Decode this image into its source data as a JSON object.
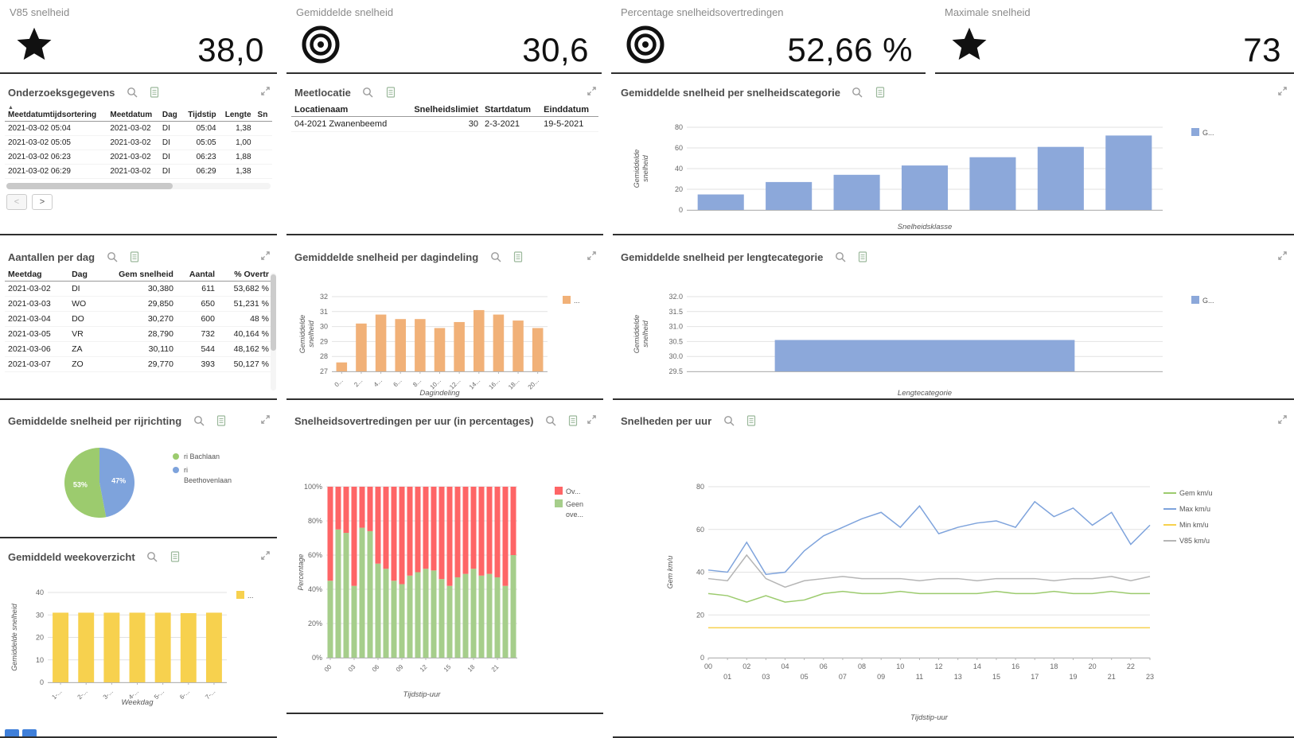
{
  "kpis": [
    {
      "title": "V85 snelheid",
      "value": "38,0",
      "icon": "star"
    },
    {
      "title": "Gemiddelde snelheid",
      "value": "30,6",
      "icon": "bullseye"
    },
    {
      "title": "Percentage snelheidsovertredingen",
      "value": "52,66 %",
      "icon": "bullseye"
    },
    {
      "title": "Maximale snelheid",
      "value": "73",
      "icon": "star"
    }
  ],
  "panels": {
    "onderzoeksgegevens": {
      "title": "Onderzoeksgegevens",
      "table": {
        "headers": [
          "Meetdatumtijdsortering",
          "Meetdatum",
          "Dag",
          "Tijdstip",
          "Lengte",
          "Sn"
        ],
        "aligns": [
          "left",
          "left",
          "left",
          "right",
          "right",
          "left"
        ],
        "sort_col": 0,
        "rows": [
          [
            "2021-03-02 05:04",
            "2021-03-02",
            "DI",
            "05:04",
            "1,38",
            ""
          ],
          [
            "2021-03-02 05:05",
            "2021-03-02",
            "DI",
            "05:05",
            "1,00",
            ""
          ],
          [
            "2021-03-02 06:23",
            "2021-03-02",
            "DI",
            "06:23",
            "1,88",
            ""
          ],
          [
            "2021-03-02 06:29",
            "2021-03-02",
            "DI",
            "06:29",
            "1,38",
            ""
          ]
        ]
      },
      "pager": {
        "prev": "<",
        "next": ">"
      }
    },
    "meetlocatie": {
      "title": "Meetlocatie",
      "table": {
        "headers": [
          "Locatienaam",
          "Snelheidslimiet",
          "Startdatum",
          "Einddatum"
        ],
        "aligns": [
          "left",
          "right",
          "left",
          "left"
        ],
        "rows": [
          [
            "04-2021 Zwanenbeemd",
            "30",
            "2-3-2021",
            "19-5-2021"
          ]
        ]
      }
    },
    "speed_category": {
      "title": "Gemiddelde snelheid per snelheidscategorie"
    },
    "aantallen": {
      "title": "Aantallen per dag",
      "table": {
        "headers": [
          "Meetdag",
          "Dag",
          "Gem snelheid",
          "Aantal",
          "% Overtr"
        ],
        "aligns": [
          "left",
          "left",
          "right",
          "right",
          "right"
        ],
        "rows": [
          [
            "2021-03-02",
            "DI",
            "30,380",
            "611",
            "53,682 %"
          ],
          [
            "2021-03-03",
            "WO",
            "29,850",
            "650",
            "51,231 %"
          ],
          [
            "2021-03-04",
            "DO",
            "30,270",
            "600",
            "48 %"
          ],
          [
            "2021-03-05",
            "VR",
            "28,790",
            "732",
            "40,164 %"
          ],
          [
            "2021-03-06",
            "ZA",
            "30,110",
            "544",
            "48,162 %"
          ],
          [
            "2021-03-07",
            "ZO",
            "29,770",
            "393",
            "50,127 %"
          ]
        ]
      }
    },
    "dagindeling": {
      "title": "Gemiddelde snelheid per dagindeling"
    },
    "lengtecategorie": {
      "title": "Gemiddelde snelheid per lengtecategorie"
    },
    "rijrichting": {
      "title": "Gemiddelde snelheid per rijrichting"
    },
    "overtredingen": {
      "title": "Snelheidsovertredingen per uur (in percentages)"
    },
    "snelheden": {
      "title": "Snelheden per uur"
    },
    "weekoverzicht": {
      "title": "Gemiddeld weekoverzicht"
    }
  },
  "chart_data": [
    {
      "id": "speed_category",
      "type": "bar",
      "title": "Gemiddelde snelheid per snelheidscategorie",
      "categories": [
        "",
        "",
        "",
        "",
        "",
        "",
        ""
      ],
      "values": [
        15,
        27,
        34,
        43,
        51,
        61,
        72
      ],
      "color": "#8ca8da",
      "ylim": [
        0,
        80
      ],
      "yticks": [
        0,
        20,
        40,
        60,
        80
      ],
      "xlabel": "Snelheidsklasse",
      "ylabel": "Gemiddelde snelheid",
      "legend": [
        {
          "label": "G...",
          "color": "#8ca8da",
          "shape": "rect"
        }
      ]
    },
    {
      "id": "dagindeling",
      "type": "bar",
      "title": "Gemiddelde snelheid per dagindeling",
      "categories": [
        "0...",
        "2...",
        "4...",
        "6...",
        "8...",
        "10...",
        "12...",
        "14...",
        "16...",
        "18...",
        "20..."
      ],
      "values": [
        27.6,
        30.2,
        30.8,
        30.5,
        30.5,
        29.9,
        30.3,
        31.1,
        30.8,
        30.4,
        29.9
      ],
      "color": "#f1b178",
      "ylim": [
        27,
        32
      ],
      "yticks": [
        27,
        28,
        29,
        30,
        31,
        32
      ],
      "xlabel": "Dagindeling",
      "ylabel": "Gemiddelde snelheid",
      "xRotate": true,
      "legend": [
        {
          "label": "...",
          "color": "#f1b178",
          "shape": "rect"
        }
      ]
    },
    {
      "id": "lengtecategorie",
      "type": "bar",
      "title": "Gemiddelde snelheid per lengtecategorie",
      "categories": [
        ""
      ],
      "values": [
        30.55
      ],
      "color": "#8ca8da",
      "ylim": [
        29.5,
        32
      ],
      "yticks": [
        29.5,
        30,
        30.5,
        31,
        31.5,
        32
      ],
      "ydec": 1,
      "xlabel": "Lengtecategorie",
      "ylabel": "Gemiddelde snelheid",
      "legend": [
        {
          "label": "G...",
          "color": "#8ca8da",
          "shape": "rect"
        }
      ]
    },
    {
      "id": "rijrichting",
      "type": "pie",
      "title": "Gemiddelde snelheid per rijrichting",
      "slices": [
        {
          "label": "ri Beethovenlaan",
          "value": 47,
          "pct": "47%",
          "color": "#7ea3dc"
        },
        {
          "label": "ri Bachlaan",
          "value": 53,
          "pct": "53%",
          "color": "#9ccb6e"
        }
      ],
      "legend": [
        {
          "label": "ri Bachlaan",
          "color": "#9ccb6e",
          "shape": "dot"
        },
        {
          "label": "ri Beethovenlaan",
          "color": "#7ea3dc",
          "shape": "dot"
        }
      ]
    },
    {
      "id": "overtredingen",
      "type": "bar",
      "stacked": true,
      "title": "Snelheidsovertredingen per uur (in percentages)",
      "categories": [
        "00",
        "01",
        "02",
        "03",
        "04",
        "05",
        "06",
        "07",
        "08",
        "09",
        "10",
        "11",
        "12",
        "13",
        "14",
        "15",
        "16",
        "17",
        "18",
        "19",
        "20",
        "21",
        "22",
        "23"
      ],
      "series": [
        {
          "name": "Geen ove...",
          "color": "#a6ce8b",
          "values": [
            45,
            75,
            73,
            42,
            76,
            74,
            55,
            52,
            45,
            43,
            48,
            50,
            52,
            51,
            46,
            42,
            47,
            49,
            52,
            48,
            49,
            47,
            42,
            60
          ]
        },
        {
          "name": "Ov...",
          "color": "#fe6566",
          "values": [
            55,
            25,
            27,
            58,
            24,
            26,
            45,
            48,
            55,
            57,
            52,
            50,
            48,
            49,
            54,
            58,
            53,
            51,
            48,
            52,
            51,
            53,
            58,
            40
          ]
        }
      ],
      "ylim": [
        0,
        100
      ],
      "yticks": [
        0,
        20,
        40,
        60,
        80,
        100
      ],
      "yfmt": "%",
      "xlabel": "Tijdstip-uur",
      "ylabel": "Percentage",
      "xEvery": 3,
      "xRotate": true,
      "legend": [
        {
          "label": "Ov...",
          "color": "#fe6566",
          "shape": "rect"
        },
        {
          "label": "Geen ove...",
          "color": "#a6ce8b",
          "shape": "rect"
        }
      ]
    },
    {
      "id": "snelheden",
      "type": "line",
      "title": "Snelheden per uur",
      "x_labels": [
        "00",
        "01",
        "02",
        "03",
        "04",
        "05",
        "06",
        "07",
        "08",
        "09",
        "10",
        "11",
        "12",
        "13",
        "14",
        "15",
        "16",
        "17",
        "18",
        "19",
        "20",
        "21",
        "22",
        "23"
      ],
      "series": [
        {
          "name": "Gem km/u",
          "color": "#9ccb6e",
          "values": [
            30,
            29,
            26,
            29,
            26,
            27,
            30,
            31,
            30,
            30,
            31,
            30,
            30,
            30,
            30,
            31,
            30,
            30,
            31,
            30,
            30,
            31,
            30,
            30
          ]
        },
        {
          "name": "Max km/u",
          "color": "#7ea3dc",
          "values": [
            41,
            40,
            54,
            39,
            40,
            50,
            57,
            61,
            65,
            68,
            61,
            71,
            58,
            61,
            63,
            64,
            61,
            73,
            66,
            70,
            62,
            68,
            53,
            62
          ]
        },
        {
          "name": "Min km/u",
          "color": "#f7d14e",
          "values": [
            14,
            14,
            14,
            14,
            14,
            14,
            14,
            14,
            14,
            14,
            14,
            14,
            14,
            14,
            14,
            14,
            14,
            14,
            14,
            14,
            14,
            14,
            14,
            14
          ]
        },
        {
          "name": "V85 km/u",
          "color": "#b5b5b5",
          "values": [
            37,
            36,
            48,
            37,
            33,
            36,
            37,
            38,
            37,
            37,
            37,
            36,
            37,
            37,
            36,
            37,
            37,
            37,
            36,
            37,
            37,
            38,
            36,
            38
          ]
        }
      ],
      "ylim": [
        0,
        80
      ],
      "yticks": [
        0,
        20,
        40,
        60,
        80
      ],
      "xlabel": "Tijdstip-uur",
      "ylabel": "Gem km/u",
      "xStagger": true,
      "legend": [
        {
          "label": "Gem km/u",
          "color": "#9ccb6e",
          "shape": "line"
        },
        {
          "label": "Max km/u",
          "color": "#7ea3dc",
          "shape": "line"
        },
        {
          "label": "Min km/u",
          "color": "#f7d14e",
          "shape": "line"
        },
        {
          "label": "V85 km/u",
          "color": "#b5b5b5",
          "shape": "line"
        }
      ]
    },
    {
      "id": "weekoverzicht",
      "type": "bar",
      "title": "Gemiddeld weekoverzicht",
      "categories": [
        "1-...",
        "2-...",
        "3-...",
        "4-...",
        "5-...",
        "6-...",
        "7-..."
      ],
      "values": [
        31,
        31,
        31,
        31,
        31,
        30.8,
        31
      ],
      "color": "#f7d14e",
      "ylim": [
        0,
        40
      ],
      "yticks": [
        0,
        10,
        20,
        30,
        40
      ],
      "xlabel": "Weekdag",
      "ylabel": "Gemiddelde snelheid",
      "xRotate": true,
      "legend": [
        {
          "label": "...",
          "color": "#f7d14e",
          "shape": "rect"
        }
      ]
    }
  ]
}
